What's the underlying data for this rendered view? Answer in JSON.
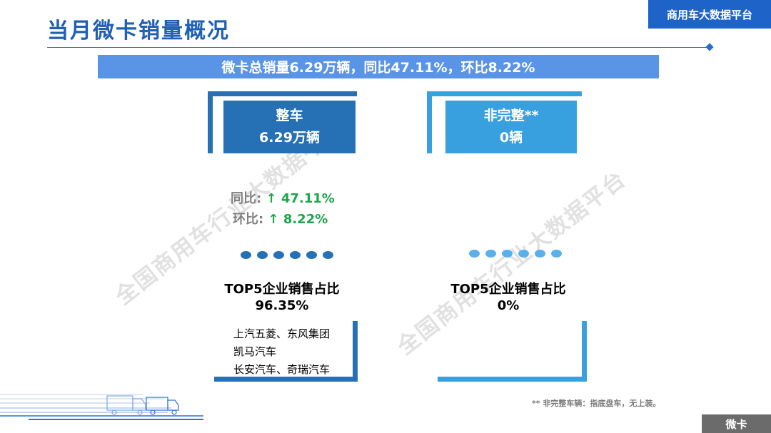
{
  "header": {
    "title": "当月微卡销量概况",
    "brand": "商用车大数据平台"
  },
  "summary": "微卡总销量6.29万辆，同比47.11%，环比8.22%",
  "left_card": {
    "name": "整车",
    "value": "6.29万辆",
    "yoy_label": "同比: ",
    "yoy_value": "↑ 47.11%",
    "mom_label": "环比: ",
    "mom_value": "↑ 8.22%",
    "top5_title": "TOP5企业销售占比",
    "top5_value": "96.35%",
    "companies": [
      "上汽五菱、东风集团",
      "凯马汽车",
      "长安汽车、奇瑞汽车"
    ]
  },
  "right_card": {
    "name": "非完整**",
    "value": "0辆",
    "top5_title": "TOP5企业销售占比",
    "top5_value": "0%"
  },
  "footnote": "** 非完整车辆：指底盘车，无上装。",
  "corner_label": "微卡",
  "watermark": "全国商用车行业大数据平台",
  "colors": {
    "title_blue": "#1f5fb4",
    "dark_blue": "#2670b5",
    "light_blue": "#39a0e0",
    "summary_bar": "#5a94e6",
    "up_green": "#1aa64a"
  },
  "icons": {
    "truck_decoration": "truck-fleet-icon"
  }
}
